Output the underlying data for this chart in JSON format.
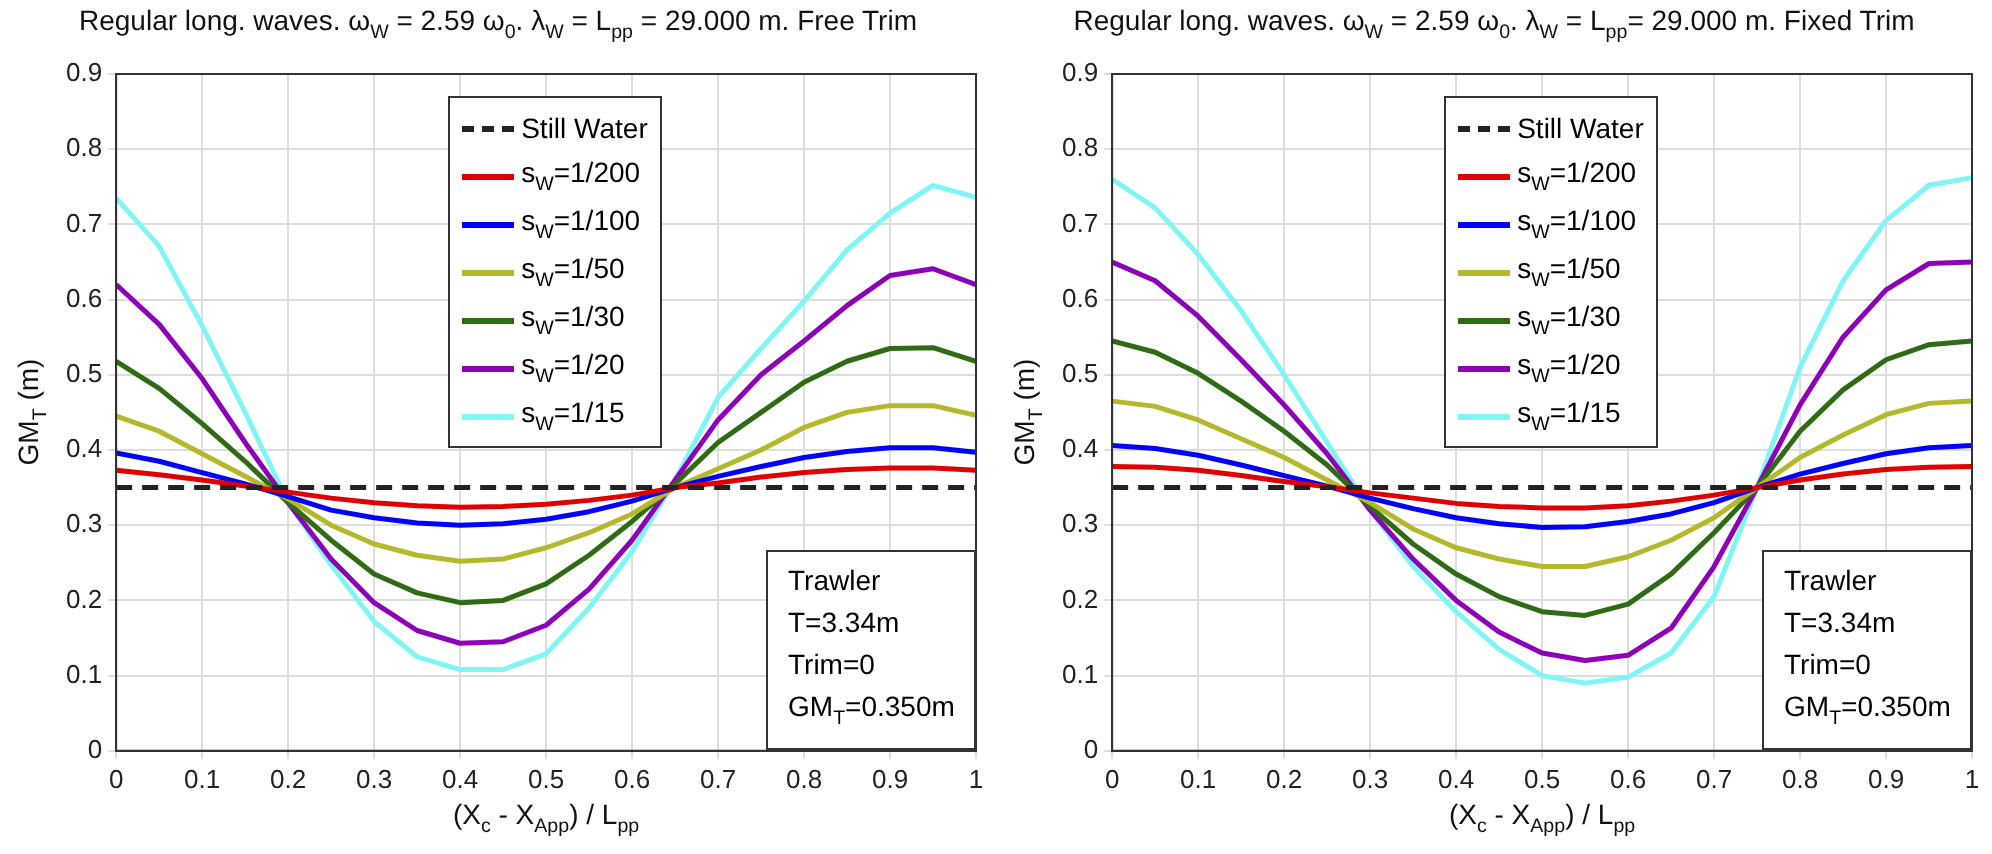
{
  "chart_data": [
    {
      "type": "line",
      "title": "Regular long. waves. ω$_{W}$ = 2.59 ω$_{0}$. λ$_{W}$ = L$_{pp}$ = 29.000 m. Free Trim",
      "xlabel": "(X$_{c}$ - X$_{App}$) / L$_{pp}$",
      "ylabel": "GM$_{T}$ (m)",
      "x": [
        0,
        0.05,
        0.1,
        0.15,
        0.2,
        0.25,
        0.3,
        0.35,
        0.4,
        0.45,
        0.5,
        0.55,
        0.6,
        0.65,
        0.7,
        0.75,
        0.8,
        0.85,
        0.9,
        0.95,
        1
      ],
      "xlim": [
        0,
        1
      ],
      "xticks": [
        0,
        0.1,
        0.2,
        0.3,
        0.4,
        0.5,
        0.6,
        0.7,
        0.8,
        0.9,
        1
      ],
      "ylim": [
        0,
        0.9
      ],
      "yticks": [
        0,
        0.1,
        0.2,
        0.3,
        0.4,
        0.5,
        0.6,
        0.7,
        0.8,
        0.9
      ],
      "grid": true,
      "legend": "top",
      "marker": "none",
      "series": [
        {
          "name": "Still Water",
          "color": "#222222",
          "line_style": "dashed",
          "values": [
            0.35,
            0.35,
            0.35,
            0.35,
            0.35,
            0.35,
            0.35,
            0.35,
            0.35,
            0.35,
            0.35,
            0.35,
            0.35,
            0.35,
            0.35,
            0.35,
            0.35,
            0.35,
            0.35,
            0.35,
            0.35
          ]
        },
        {
          "name": "s$_{W}$=1/200",
          "color": "#e00000",
          "values": [
            0.373,
            0.367,
            0.36,
            0.352,
            0.344,
            0.336,
            0.33,
            0.326,
            0.324,
            0.325,
            0.328,
            0.333,
            0.34,
            0.35,
            0.356,
            0.364,
            0.37,
            0.374,
            0.376,
            0.376,
            0.373
          ]
        },
        {
          "name": "s$_{W}$=1/100",
          "color": "#0000ff",
          "values": [
            0.396,
            0.385,
            0.37,
            0.355,
            0.338,
            0.32,
            0.31,
            0.303,
            0.3,
            0.302,
            0.308,
            0.318,
            0.332,
            0.35,
            0.365,
            0.378,
            0.39,
            0.398,
            0.403,
            0.403,
            0.397
          ]
        },
        {
          "name": "s$_{W}$=1/50",
          "color": "#b5b82a",
          "values": [
            0.445,
            0.425,
            0.395,
            0.365,
            0.335,
            0.3,
            0.275,
            0.26,
            0.252,
            0.255,
            0.27,
            0.29,
            0.315,
            0.35,
            0.375,
            0.4,
            0.43,
            0.45,
            0.459,
            0.459,
            0.446
          ]
        },
        {
          "name": "s$_{W}$=1/30",
          "color": "#2e6b12",
          "values": [
            0.518,
            0.482,
            0.435,
            0.385,
            0.33,
            0.28,
            0.235,
            0.21,
            0.197,
            0.2,
            0.222,
            0.26,
            0.305,
            0.355,
            0.41,
            0.45,
            0.49,
            0.518,
            0.535,
            0.536,
            0.518
          ]
        },
        {
          "name": "s$_{W}$=1/20",
          "color": "#8e00b8",
          "values": [
            0.62,
            0.567,
            0.495,
            0.41,
            0.33,
            0.255,
            0.197,
            0.16,
            0.143,
            0.145,
            0.167,
            0.215,
            0.28,
            0.36,
            0.44,
            0.5,
            0.545,
            0.592,
            0.632,
            0.641,
            0.62
          ]
        },
        {
          "name": "s$_{W}$=1/15",
          "color": "#7ff5f5",
          "values": [
            0.735,
            0.671,
            0.565,
            0.45,
            0.33,
            0.247,
            0.172,
            0.125,
            0.108,
            0.108,
            0.129,
            0.19,
            0.265,
            0.36,
            0.47,
            0.535,
            0.598,
            0.666,
            0.715,
            0.752,
            0.736
          ]
        }
      ],
      "annotations": [
        "Trawler",
        "T=3.34m",
        "Trim=0",
        "GM$_{T}$=0.350m"
      ]
    },
    {
      "type": "line",
      "title": "Regular long. waves. ω$_{W}$ = 2.59 ω$_{0}$. λ$_{W}$ = L$_{pp}$= 29.000 m. Fixed Trim",
      "xlabel": "(X$_{c}$ - X$_{App}$) / L$_{pp}$",
      "ylabel": "GM$_{T}$ (m)",
      "x": [
        0,
        0.05,
        0.1,
        0.15,
        0.2,
        0.25,
        0.3,
        0.35,
        0.4,
        0.45,
        0.5,
        0.55,
        0.6,
        0.65,
        0.7,
        0.75,
        0.8,
        0.85,
        0.9,
        0.95,
        1
      ],
      "xlim": [
        0,
        1
      ],
      "xticks": [
        0,
        0.1,
        0.2,
        0.3,
        0.4,
        0.5,
        0.6,
        0.7,
        0.8,
        0.9,
        1
      ],
      "ylim": [
        0,
        0.9
      ],
      "yticks": [
        0,
        0.1,
        0.2,
        0.3,
        0.4,
        0.5,
        0.6,
        0.7,
        0.8,
        0.9
      ],
      "grid": true,
      "legend": "top",
      "marker": "none",
      "series": [
        {
          "name": "Still Water",
          "color": "#222222",
          "line_style": "dashed",
          "values": [
            0.35,
            0.35,
            0.35,
            0.35,
            0.35,
            0.35,
            0.35,
            0.35,
            0.35,
            0.35,
            0.35,
            0.35,
            0.35,
            0.35,
            0.35,
            0.35,
            0.35,
            0.35,
            0.35,
            0.35,
            0.35
          ]
        },
        {
          "name": "s$_{W}$=1/200",
          "color": "#e00000",
          "values": [
            0.378,
            0.377,
            0.373,
            0.366,
            0.358,
            0.351,
            0.343,
            0.336,
            0.329,
            0.325,
            0.323,
            0.323,
            0.326,
            0.332,
            0.34,
            0.35,
            0.36,
            0.368,
            0.374,
            0.377,
            0.378
          ]
        },
        {
          "name": "s$_{W}$=1/100",
          "color": "#0000ff",
          "values": [
            0.406,
            0.402,
            0.393,
            0.38,
            0.366,
            0.352,
            0.336,
            0.322,
            0.31,
            0.302,
            0.297,
            0.298,
            0.305,
            0.315,
            0.33,
            0.35,
            0.368,
            0.382,
            0.395,
            0.403,
            0.406
          ]
        },
        {
          "name": "s$_{W}$=1/50",
          "color": "#b5b82a",
          "values": [
            0.465,
            0.458,
            0.44,
            0.415,
            0.39,
            0.36,
            0.33,
            0.295,
            0.27,
            0.255,
            0.245,
            0.245,
            0.258,
            0.28,
            0.31,
            0.35,
            0.39,
            0.42,
            0.447,
            0.462,
            0.465
          ]
        },
        {
          "name": "s$_{W}$=1/30",
          "color": "#2e6b12",
          "values": [
            0.545,
            0.53,
            0.502,
            0.465,
            0.425,
            0.38,
            0.325,
            0.275,
            0.235,
            0.205,
            0.185,
            0.18,
            0.195,
            0.235,
            0.29,
            0.35,
            0.425,
            0.48,
            0.52,
            0.54,
            0.545
          ]
        },
        {
          "name": "s$_{W}$=1/20",
          "color": "#8e00b8",
          "values": [
            0.65,
            0.625,
            0.578,
            0.52,
            0.46,
            0.395,
            0.32,
            0.255,
            0.2,
            0.158,
            0.13,
            0.12,
            0.127,
            0.163,
            0.245,
            0.35,
            0.46,
            0.55,
            0.613,
            0.648,
            0.65
          ]
        },
        {
          "name": "s$_{W}$=1/15",
          "color": "#7ff5f5",
          "values": [
            0.76,
            0.722,
            0.66,
            0.585,
            0.5,
            0.41,
            0.32,
            0.245,
            0.185,
            0.135,
            0.1,
            0.09,
            0.098,
            0.13,
            0.205,
            0.35,
            0.51,
            0.625,
            0.705,
            0.752,
            0.762
          ]
        }
      ],
      "annotations": [
        "Trawler",
        "T=3.34m",
        "Trim=0",
        "GM$_{T}$=0.350m"
      ]
    }
  ]
}
